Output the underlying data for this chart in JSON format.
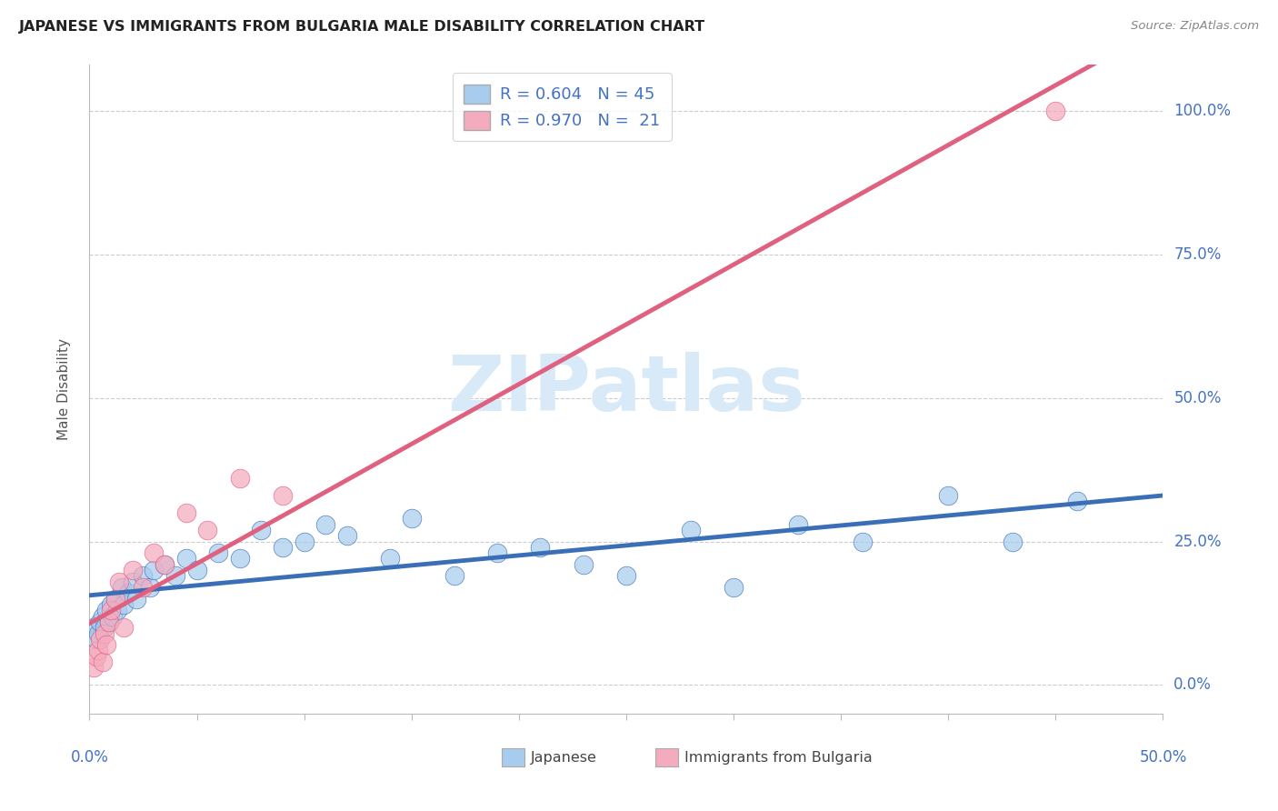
{
  "title": "JAPANESE VS IMMIGRANTS FROM BULGARIA MALE DISABILITY CORRELATION CHART",
  "source": "Source: ZipAtlas.com",
  "ylabel": "Male Disability",
  "y_tick_labels": [
    "0.0%",
    "25.0%",
    "50.0%",
    "75.0%",
    "100.0%"
  ],
  "y_tick_values": [
    0,
    25,
    50,
    75,
    100
  ],
  "x_range": [
    0,
    50
  ],
  "y_range": [
    -5,
    108
  ],
  "legend_label1": "R = 0.604   N = 45",
  "legend_label2": "R = 0.970   N =  21",
  "color_japanese": "#A8CCEE",
  "color_bulgaria": "#F5ABBE",
  "line_color_japanese": "#3A6FB8",
  "line_color_bulgaria": "#E06080",
  "watermark_color": "#D8EAF8",
  "japanese_x": [
    0.2,
    0.3,
    0.4,
    0.5,
    0.6,
    0.7,
    0.8,
    0.9,
    1.0,
    1.1,
    1.2,
    1.3,
    1.5,
    1.6,
    1.8,
    2.0,
    2.2,
    2.5,
    2.8,
    3.0,
    3.5,
    4.0,
    4.5,
    5.0,
    6.0,
    7.0,
    8.0,
    9.0,
    10.0,
    11.0,
    12.0,
    14.0,
    15.0,
    17.0,
    19.0,
    21.0,
    23.0,
    25.0,
    28.0,
    30.0,
    33.0,
    36.0,
    40.0,
    43.0,
    46.0
  ],
  "japanese_y": [
    10,
    8,
    9,
    11,
    12,
    10,
    13,
    11,
    14,
    12,
    15,
    13,
    17,
    14,
    16,
    18,
    15,
    19,
    17,
    20,
    21,
    19,
    22,
    20,
    23,
    22,
    27,
    24,
    25,
    28,
    26,
    22,
    29,
    19,
    23,
    24,
    21,
    19,
    27,
    17,
    28,
    25,
    33,
    25,
    32
  ],
  "bulgaria_x": [
    0.2,
    0.3,
    0.4,
    0.5,
    0.6,
    0.7,
    0.8,
    0.9,
    1.0,
    1.2,
    1.4,
    1.6,
    2.0,
    2.5,
    3.0,
    3.5,
    4.5,
    5.5,
    7.0,
    9.0,
    45.0
  ],
  "bulgaria_y": [
    3,
    5,
    6,
    8,
    4,
    9,
    7,
    11,
    13,
    15,
    18,
    10,
    20,
    17,
    23,
    21,
    30,
    27,
    36,
    33,
    100
  ],
  "bottom_legend_japanese": "Japanese",
  "bottom_legend_bulgaria": "Immigrants from Bulgaria"
}
